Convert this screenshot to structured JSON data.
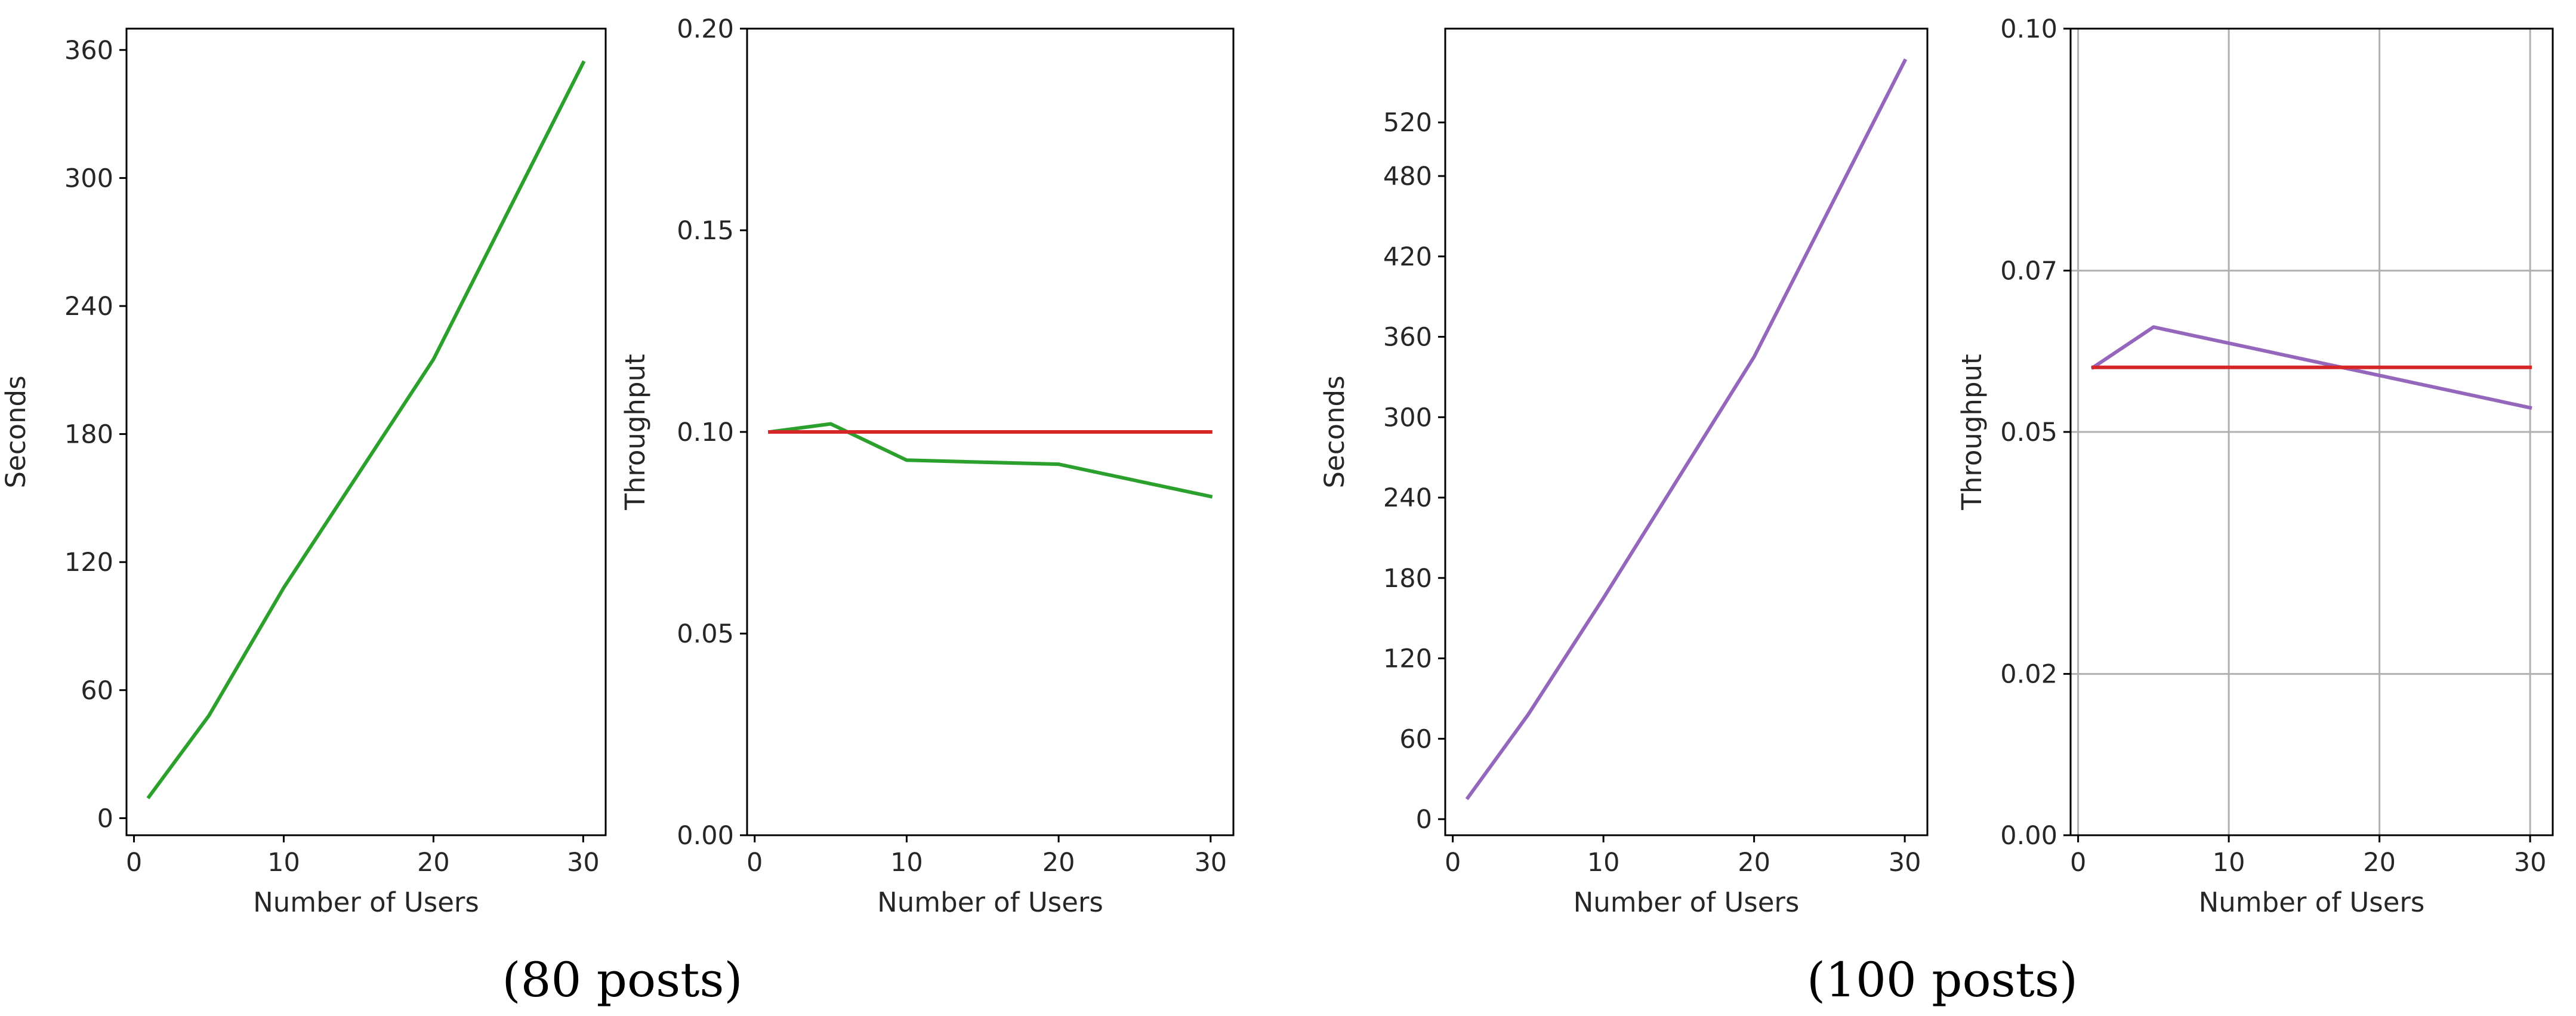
{
  "figure": {
    "captions": [
      "(80 posts)",
      "(100 posts)"
    ]
  },
  "colors": {
    "green": "#2ca02c",
    "red": "#d62728",
    "purple": "#9467bd",
    "grid": "#b0b0b0",
    "axis": "#000000"
  },
  "chart_data": [
    {
      "type": "line",
      "xlabel": "Number of Users",
      "ylabel": "Seconds",
      "xlim": [
        -0.5,
        31.5
      ],
      "ylim": [
        -8,
        370
      ],
      "xticks": [
        0,
        10,
        20,
        30
      ],
      "yticks": [
        0,
        60,
        120,
        180,
        240,
        300,
        360
      ],
      "grid": false,
      "series": [
        {
          "color": "green",
          "x": [
            1,
            5,
            10,
            20,
            30
          ],
          "y": [
            10,
            48,
            108,
            215,
            354
          ]
        }
      ]
    },
    {
      "type": "line",
      "xlabel": "Number of Users",
      "ylabel": "Throughput",
      "xlim": [
        -0.5,
        31.5
      ],
      "ylim": [
        0,
        0.2
      ],
      "xticks": [
        0,
        10,
        20,
        30
      ],
      "yticks": [
        0.0,
        0.05,
        0.1,
        0.15,
        0.2
      ],
      "ytick_labels": [
        "0.00",
        "0.05",
        "0.10",
        "0.15",
        "0.20"
      ],
      "grid": false,
      "series": [
        {
          "color": "green",
          "x": [
            1,
            5,
            10,
            20,
            30
          ],
          "y": [
            0.1,
            0.102,
            0.093,
            0.092,
            0.084
          ]
        },
        {
          "color": "red",
          "x": [
            1,
            30
          ],
          "y": [
            0.1,
            0.1
          ]
        }
      ]
    },
    {
      "type": "line",
      "xlabel": "Number of Users",
      "ylabel": "Seconds",
      "xlim": [
        -0.5,
        31.5
      ],
      "ylim": [
        -12,
        590
      ],
      "xticks": [
        0,
        10,
        20,
        30
      ],
      "yticks": [
        0,
        60,
        120,
        180,
        240,
        300,
        360,
        420,
        480,
        520
      ],
      "grid": false,
      "series": [
        {
          "color": "purple",
          "x": [
            1,
            5,
            10,
            20,
            30
          ],
          "y": [
            16,
            78,
            165,
            345,
            566
          ]
        }
      ]
    },
    {
      "type": "line",
      "xlabel": "Number of Users",
      "ylabel": "Throughput",
      "xlim": [
        -0.5,
        31.5
      ],
      "ylim": [
        0,
        0.1
      ],
      "xticks": [
        0,
        10,
        20,
        30
      ],
      "yticks": [
        0.0,
        0.02,
        0.05,
        0.07,
        0.1
      ],
      "ytick_labels": [
        "0.00",
        "0.02",
        "0.05",
        "0.07",
        "0.10"
      ],
      "grid": true,
      "series": [
        {
          "color": "purple",
          "x": [
            1,
            5,
            30
          ],
          "y": [
            0.058,
            0.063,
            0.053
          ]
        },
        {
          "color": "red",
          "x": [
            1,
            30
          ],
          "y": [
            0.058,
            0.058
          ]
        }
      ]
    }
  ]
}
